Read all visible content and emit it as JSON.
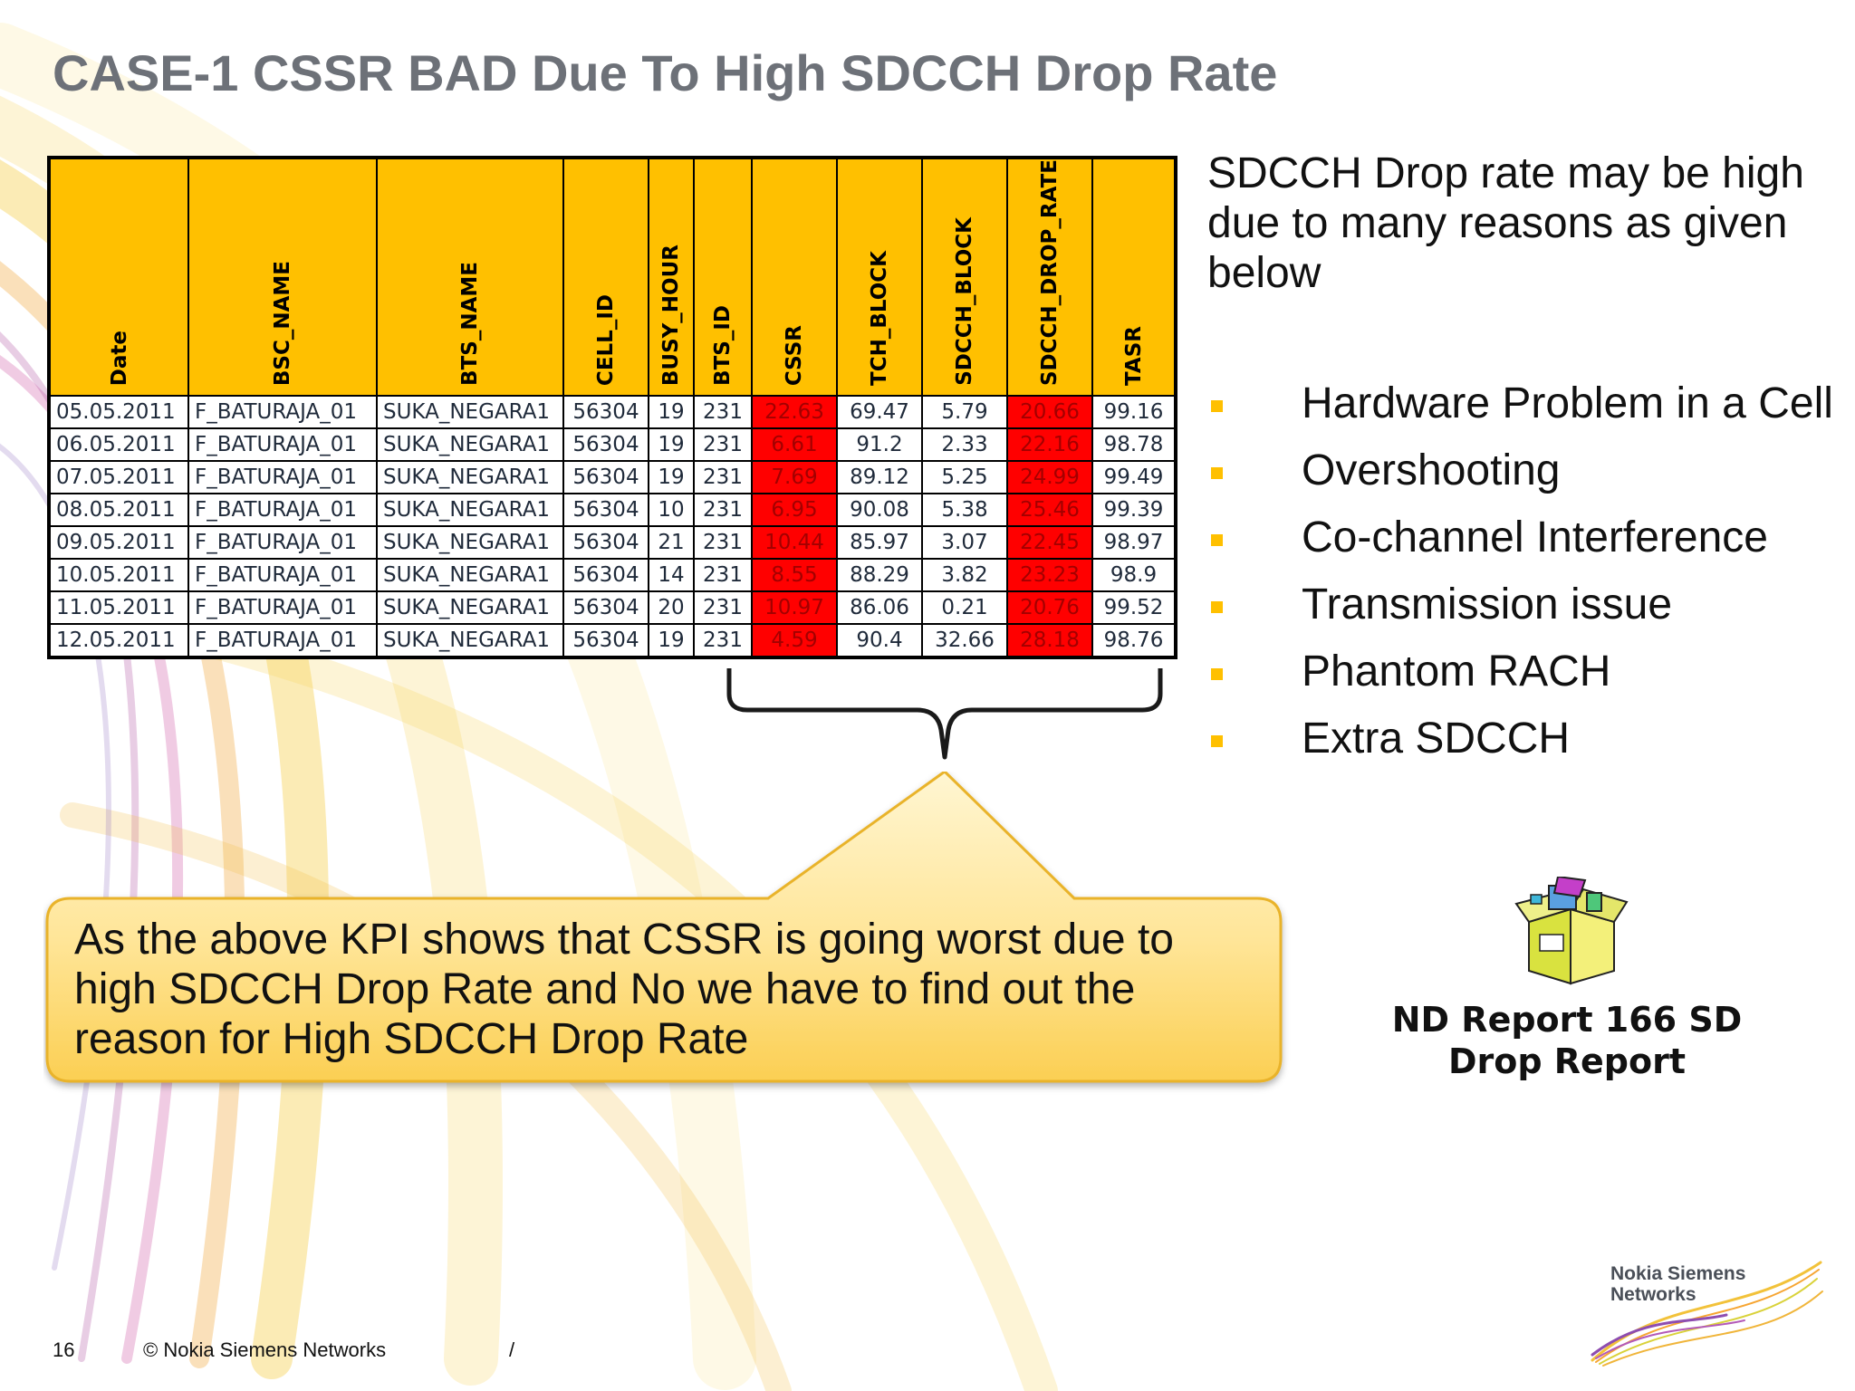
{
  "title": "CASE-1 CSSR BAD Due To High SDCCH Drop Rate",
  "table": {
    "headers": [
      "Date",
      "BSC_NAME",
      "BTS_NAME",
      "CELL_ID",
      "BUSY_HOUR",
      "BTS_ID",
      "CSSR",
      "TCH_BLOCK",
      "SDCCH_BLOCK",
      "SDCCH_DROP_RATE",
      "TASR"
    ],
    "rows": [
      [
        "05.05.2011",
        "F_BATURAJA_01",
        "SUKA_NEGARA1",
        "56304",
        "19",
        "231",
        "22.63",
        "69.47",
        "5.79",
        "20.66",
        "99.16"
      ],
      [
        "06.05.2011",
        "F_BATURAJA_01",
        "SUKA_NEGARA1",
        "56304",
        "19",
        "231",
        "6.61",
        "91.2",
        "2.33",
        "22.16",
        "98.78"
      ],
      [
        "07.05.2011",
        "F_BATURAJA_01",
        "SUKA_NEGARA1",
        "56304",
        "19",
        "231",
        "7.69",
        "89.12",
        "5.25",
        "24.99",
        "99.49"
      ],
      [
        "08.05.2011",
        "F_BATURAJA_01",
        "SUKA_NEGARA1",
        "56304",
        "10",
        "231",
        "6.95",
        "90.08",
        "5.38",
        "25.46",
        "99.39"
      ],
      [
        "09.05.2011",
        "F_BATURAJA_01",
        "SUKA_NEGARA1",
        "56304",
        "21",
        "231",
        "10.44",
        "85.97",
        "3.07",
        "22.45",
        "98.97"
      ],
      [
        "10.05.2011",
        "F_BATURAJA_01",
        "SUKA_NEGARA1",
        "56304",
        "14",
        "231",
        "8.55",
        "88.29",
        "3.82",
        "23.23",
        "98.9"
      ],
      [
        "11.05.2011",
        "F_BATURAJA_01",
        "SUKA_NEGARA1",
        "56304",
        "20",
        "231",
        "10.97",
        "86.06",
        "0.21",
        "20.76",
        "99.52"
      ],
      [
        "12.05.2011",
        "F_BATURAJA_01",
        "SUKA_NEGARA1",
        "56304",
        "19",
        "231",
        "4.59",
        "90.4",
        "32.66",
        "28.18",
        "98.76"
      ]
    ],
    "highlight_color": "#ff0000",
    "header_color": "#ffc000"
  },
  "callout": {
    "text": "As the above KPI shows that CSSR is going worst due to high SDCCH Drop Rate and No we have to find out the reason for High SDCCH Drop Rate"
  },
  "right_panel": {
    "intro": "SDCCH Drop rate may be high due to many reasons as given below",
    "bullets": [
      "Hardware Problem in a Cell",
      "Overshooting",
      "Co-channel Interference",
      "Transmission issue",
      "Phantom RACH",
      "Extra SDCCH"
    ],
    "bullet_color": "#ffc000"
  },
  "attachment": {
    "icon": "package-icon",
    "label": "ND Report 166 SD Drop Report"
  },
  "footer": {
    "page_number": "16",
    "copyright": "© Nokia Siemens Networks",
    "separator": "/"
  },
  "logo": {
    "name": "Nokia Siemens Networks",
    "line1": "Nokia Siemens",
    "line2": "Networks"
  }
}
